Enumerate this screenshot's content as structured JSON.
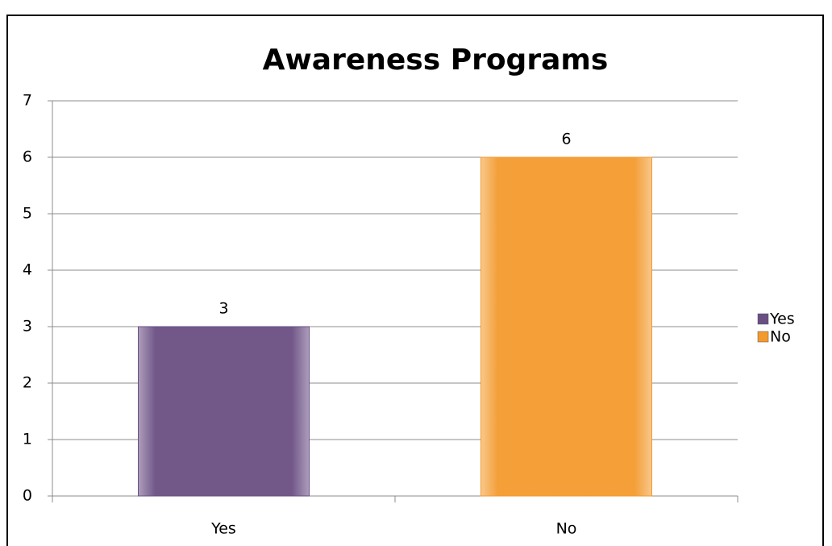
{
  "chart_data": {
    "type": "bar",
    "title": "Awareness Programs",
    "categories": [
      "Yes",
      "No"
    ],
    "series": [
      {
        "name": "Yes",
        "color": "#6a4f83",
        "values": [
          3,
          null
        ]
      },
      {
        "name": "No",
        "color": "#f39a2e",
        "values": [
          null,
          6
        ]
      }
    ],
    "ylim": [
      0,
      7
    ],
    "yticks": [
      0,
      1,
      2,
      3,
      4,
      5,
      6,
      7
    ],
    "grid": true,
    "legend": "right",
    "data_labels": true
  }
}
